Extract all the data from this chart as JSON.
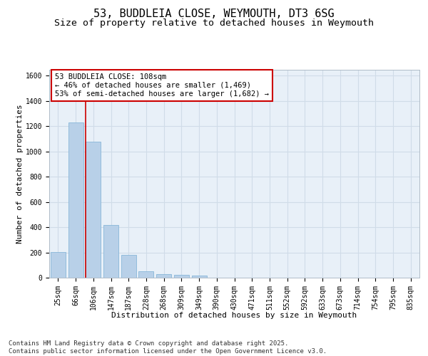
{
  "title1": "53, BUDDLEIA CLOSE, WEYMOUTH, DT3 6SG",
  "title2": "Size of property relative to detached houses in Weymouth",
  "xlabel": "Distribution of detached houses by size in Weymouth",
  "ylabel": "Number of detached properties",
  "categories": [
    "25sqm",
    "66sqm",
    "106sqm",
    "147sqm",
    "187sqm",
    "228sqm",
    "268sqm",
    "309sqm",
    "349sqm",
    "390sqm",
    "430sqm",
    "471sqm",
    "511sqm",
    "552sqm",
    "592sqm",
    "633sqm",
    "673sqm",
    "714sqm",
    "754sqm",
    "795sqm",
    "835sqm"
  ],
  "values": [
    205,
    1230,
    1075,
    415,
    178,
    52,
    30,
    20,
    15,
    0,
    0,
    0,
    0,
    0,
    0,
    0,
    0,
    0,
    0,
    0,
    0
  ],
  "bar_color": "#b8d0e8",
  "bar_edge_color": "#7aafd4",
  "grid_color": "#d0dce8",
  "background_color": "#e8f0f8",
  "vline_color": "#cc0000",
  "annotation_text": "53 BUDDLEIA CLOSE: 108sqm\n← 46% of detached houses are smaller (1,469)\n53% of semi-detached houses are larger (1,682) →",
  "annotation_box_color": "#ffffff",
  "annotation_border_color": "#cc0000",
  "ylim": [
    0,
    1650
  ],
  "yticks": [
    0,
    200,
    400,
    600,
    800,
    1000,
    1200,
    1400,
    1600
  ],
  "footer": "Contains HM Land Registry data © Crown copyright and database right 2025.\nContains public sector information licensed under the Open Government Licence v3.0.",
  "title1_fontsize": 11,
  "title2_fontsize": 9.5,
  "axis_label_fontsize": 8,
  "tick_fontsize": 7,
  "annotation_fontsize": 7.5,
  "footer_fontsize": 6.5
}
